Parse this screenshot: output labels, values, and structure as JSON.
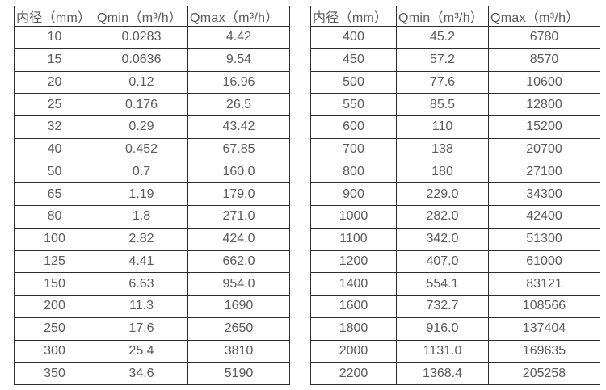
{
  "page": {
    "background_color": "#ffffff",
    "text_color": "#58595b",
    "border_color": "#2e2e2e"
  },
  "tables": [
    {
      "name": "flow-rate-table-small-diameters",
      "headers": [
        "内径（mm）",
        "Qmin（m³/h）",
        "Qmax（m³/h）"
      ],
      "rows": [
        [
          "10",
          "0.0283",
          "4.42"
        ],
        [
          "15",
          "0.0636",
          "9.54"
        ],
        [
          "20",
          "0.12",
          "16.96"
        ],
        [
          "25",
          "0.176",
          "26.5"
        ],
        [
          "32",
          "0.29",
          "43.42"
        ],
        [
          "40",
          "0.452",
          "67.85"
        ],
        [
          "50",
          "0.7",
          "160.0"
        ],
        [
          "65",
          "1.19",
          "179.0"
        ],
        [
          "80",
          "1.8",
          "271.0"
        ],
        [
          "100",
          "2.82",
          "424.0"
        ],
        [
          "125",
          "4.41",
          "662.0"
        ],
        [
          "150",
          "6.63",
          "954.0"
        ],
        [
          "200",
          "11.3",
          "1690"
        ],
        [
          "250",
          "17.6",
          "2650"
        ],
        [
          "300",
          "25.4",
          "3810"
        ],
        [
          "350",
          "34.6",
          "5190"
        ]
      ]
    },
    {
      "name": "flow-rate-table-large-diameters",
      "headers": [
        "内径（mm）",
        "Qmin（m³/h）",
        "Qmax（m³/h）"
      ],
      "rows": [
        [
          "400",
          "45.2",
          "6780"
        ],
        [
          "450",
          "57.2",
          "8570"
        ],
        [
          "500",
          "77.6",
          "10600"
        ],
        [
          "550",
          "85.5",
          "12800"
        ],
        [
          "600",
          "110",
          "15200"
        ],
        [
          "700",
          "138",
          "20700"
        ],
        [
          "800",
          "180",
          "27100"
        ],
        [
          "900",
          "229.0",
          "34300"
        ],
        [
          "1000",
          "282.0",
          "42400"
        ],
        [
          "1100",
          "342.0",
          "51300"
        ],
        [
          "1200",
          "407.0",
          "61000"
        ],
        [
          "1400",
          "554.1",
          "83121"
        ],
        [
          "1600",
          "732.7",
          "108566"
        ],
        [
          "1800",
          "916.0",
          "137404"
        ],
        [
          "2000",
          "1131.0",
          "169635"
        ],
        [
          "2200",
          "1368.4",
          "205258"
        ]
      ]
    }
  ]
}
